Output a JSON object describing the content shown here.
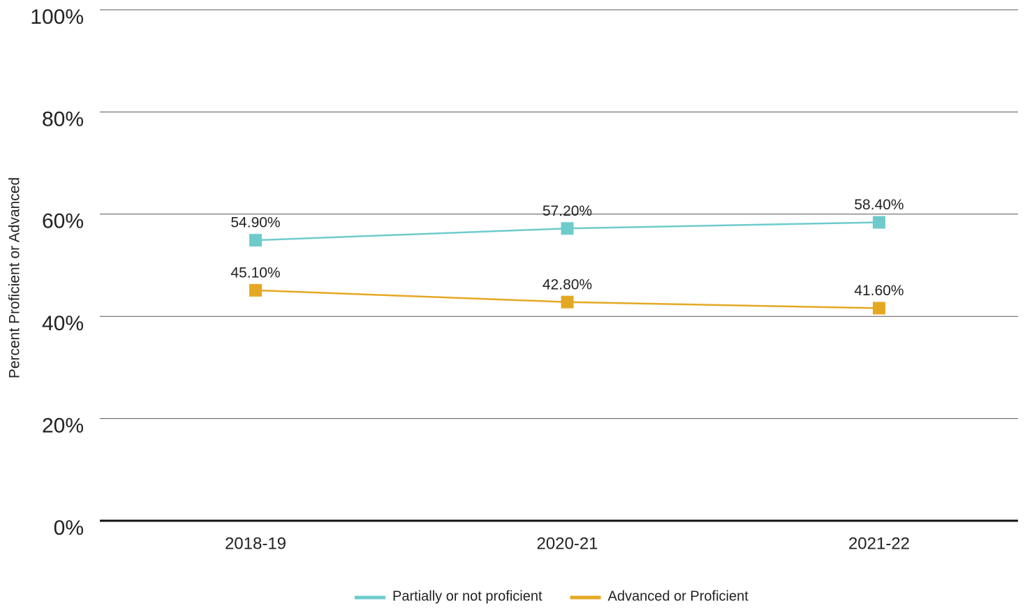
{
  "chart_data": {
    "type": "line",
    "y_axis_label": "Percent Proficient or Advanced",
    "categories": [
      "2018-19",
      "2020-21",
      "2021-22"
    ],
    "series": [
      {
        "name": "Partially or not proficient",
        "color": "#6ecbcc",
        "values": [
          54.9,
          57.2,
          58.4
        ],
        "value_labels": [
          "54.90%",
          "57.20%",
          "58.40%"
        ]
      },
      {
        "name": "Advanced or Proficient",
        "color": "#e5a823",
        "values": [
          45.1,
          42.8,
          41.6
        ],
        "value_labels": [
          "45.10%",
          "42.80%",
          "41.60%"
        ]
      }
    ],
    "ylim": [
      0,
      100
    ],
    "yticks": [
      {
        "value": 0,
        "label": "0%"
      },
      {
        "value": 20,
        "label": "20%"
      },
      {
        "value": 40,
        "label": "40%"
      },
      {
        "value": 60,
        "label": "60%"
      },
      {
        "value": 80,
        "label": "80%"
      },
      {
        "value": 100,
        "label": "100%"
      }
    ],
    "grid": true,
    "legend": "bottom"
  }
}
